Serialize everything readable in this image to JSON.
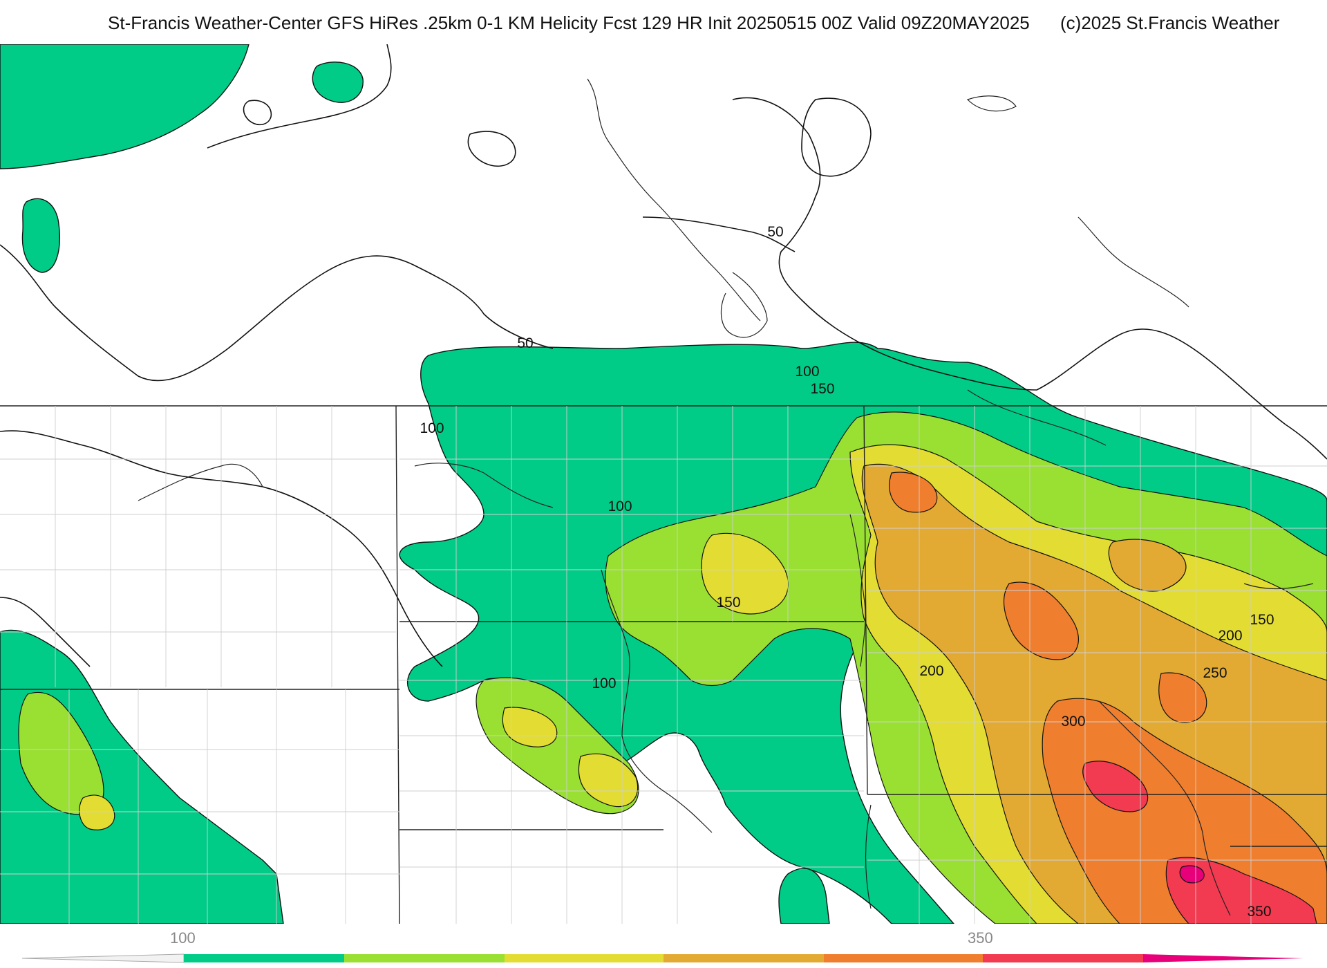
{
  "header": {
    "title": "St-Francis Weather-Center GFS HiRes .25km 0-1 KM Helicity Fcst 129 HR Init 20250515 00Z  Valid 09Z20MAY2025",
    "copyright": "(c)2025 St.Francis Weather"
  },
  "map": {
    "contour_labels": [
      "50",
      "50",
      "100",
      "150",
      "100",
      "100",
      "100",
      "150",
      "200",
      "150",
      "200",
      "250",
      "300",
      "350"
    ]
  },
  "legend": {
    "tick_labels": [
      "100",
      "350"
    ],
    "colors": [
      "#00cc88",
      "#99e033",
      "#e3dd33",
      "#e3aa33",
      "#ef7f2f",
      "#f23a50",
      "#e8007a"
    ]
  }
}
